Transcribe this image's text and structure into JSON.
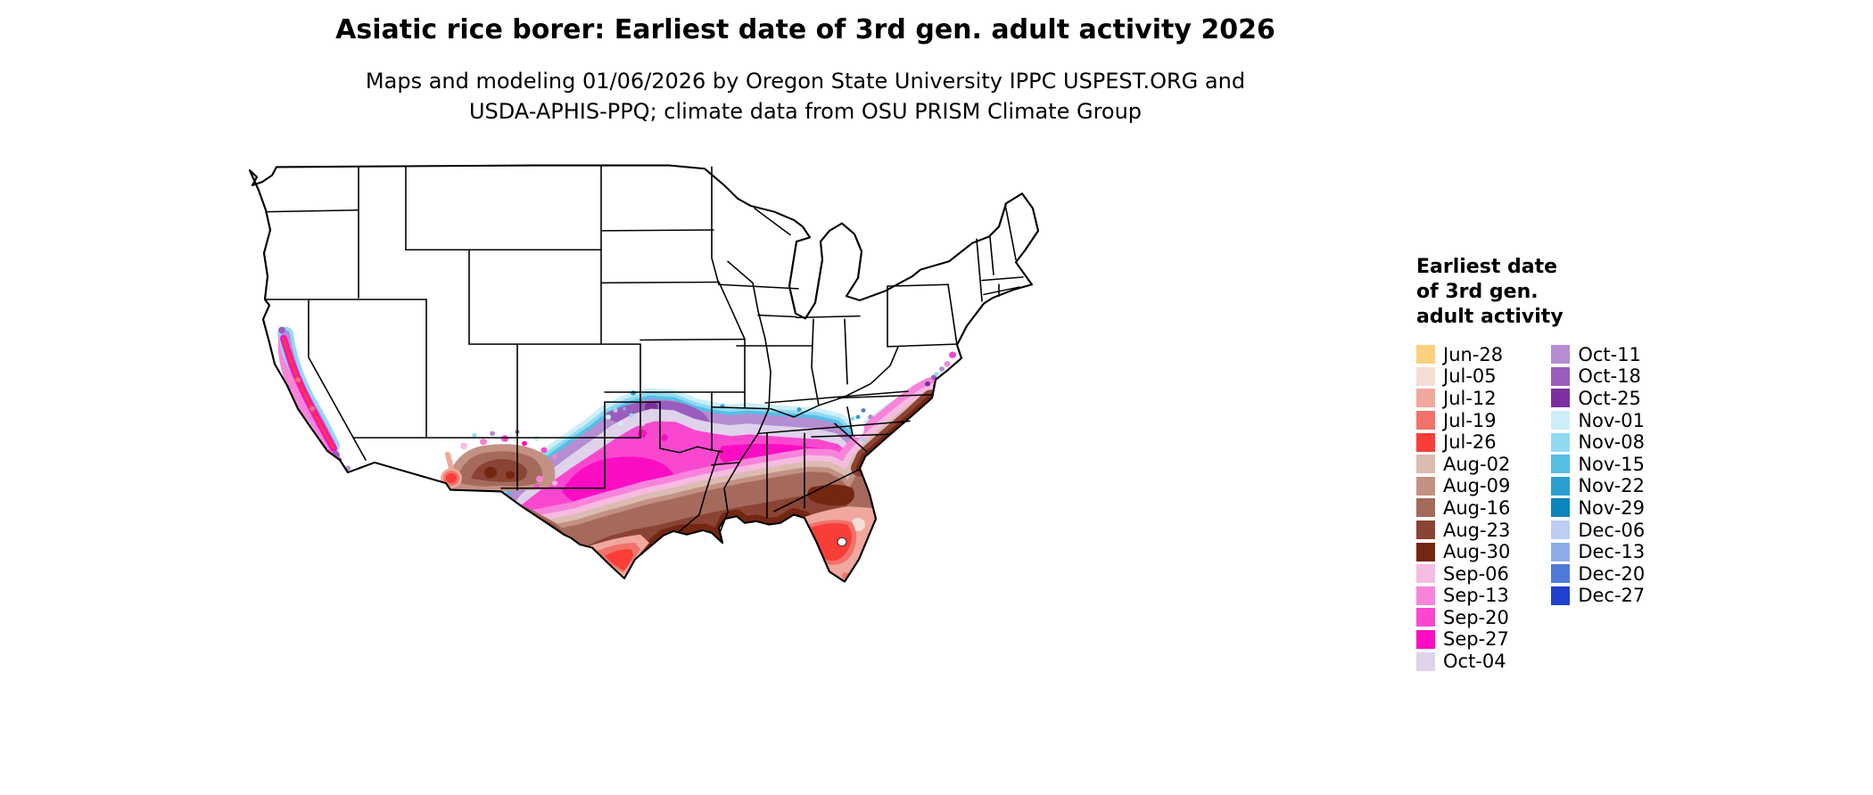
{
  "title": "Asiatic rice borer: Earliest date of 3rd gen. adult activity 2026",
  "subtitle_lines": [
    "Maps and modeling 01/06/2026 by Oregon State University IPPC USPEST.ORG and",
    "USDA-APHIS-PPQ; climate data from OSU PRISM Climate Group"
  ],
  "legend": {
    "title_lines": [
      "Earliest date",
      "of 3rd gen.",
      "adult activity"
    ],
    "columns": [
      {
        "entries": [
          {
            "label": "Jun-28",
            "color": "#fcd17c"
          },
          {
            "label": "Jul-05",
            "color": "#f6ddd6"
          },
          {
            "label": "Jul-12",
            "color": "#f0a79e"
          },
          {
            "label": "Jul-19",
            "color": "#f1726b"
          },
          {
            "label": "Jul-26",
            "color": "#f93e37"
          },
          {
            "label": "Aug-02",
            "color": "#dcbcb1"
          },
          {
            "label": "Aug-09",
            "color": "#c39184"
          },
          {
            "label": "Aug-16",
            "color": "#a56a5b"
          },
          {
            "label": "Aug-23",
            "color": "#8a4334"
          },
          {
            "label": "Aug-30",
            "color": "#742610"
          },
          {
            "label": "Sep-06",
            "color": "#f5bce1"
          },
          {
            "label": "Sep-13",
            "color": "#f784da"
          },
          {
            "label": "Sep-20",
            "color": "#f948cf"
          },
          {
            "label": "Sep-27",
            "color": "#fb0dc4"
          },
          {
            "label": "Oct-04",
            "color": "#ded3ea"
          }
        ]
      },
      {
        "entries": [
          {
            "label": "Oct-11",
            "color": "#b48dd2"
          },
          {
            "label": "Oct-18",
            "color": "#9b5cbf"
          },
          {
            "label": "Oct-25",
            "color": "#7c2f9f"
          },
          {
            "label": "Nov-01",
            "color": "#cdeef7"
          },
          {
            "label": "Nov-08",
            "color": "#90daf1"
          },
          {
            "label": "Nov-15",
            "color": "#56bee5"
          },
          {
            "label": "Nov-22",
            "color": "#2b9fd1"
          },
          {
            "label": "Nov-29",
            "color": "#0c84bc"
          },
          {
            "label": "Dec-06",
            "color": "#bdcdf3"
          },
          {
            "label": "Dec-13",
            "color": "#90abe9"
          },
          {
            "label": "Dec-20",
            "color": "#4f79da"
          },
          {
            "label": "Dec-27",
            "color": "#2041cd"
          }
        ]
      }
    ]
  }
}
